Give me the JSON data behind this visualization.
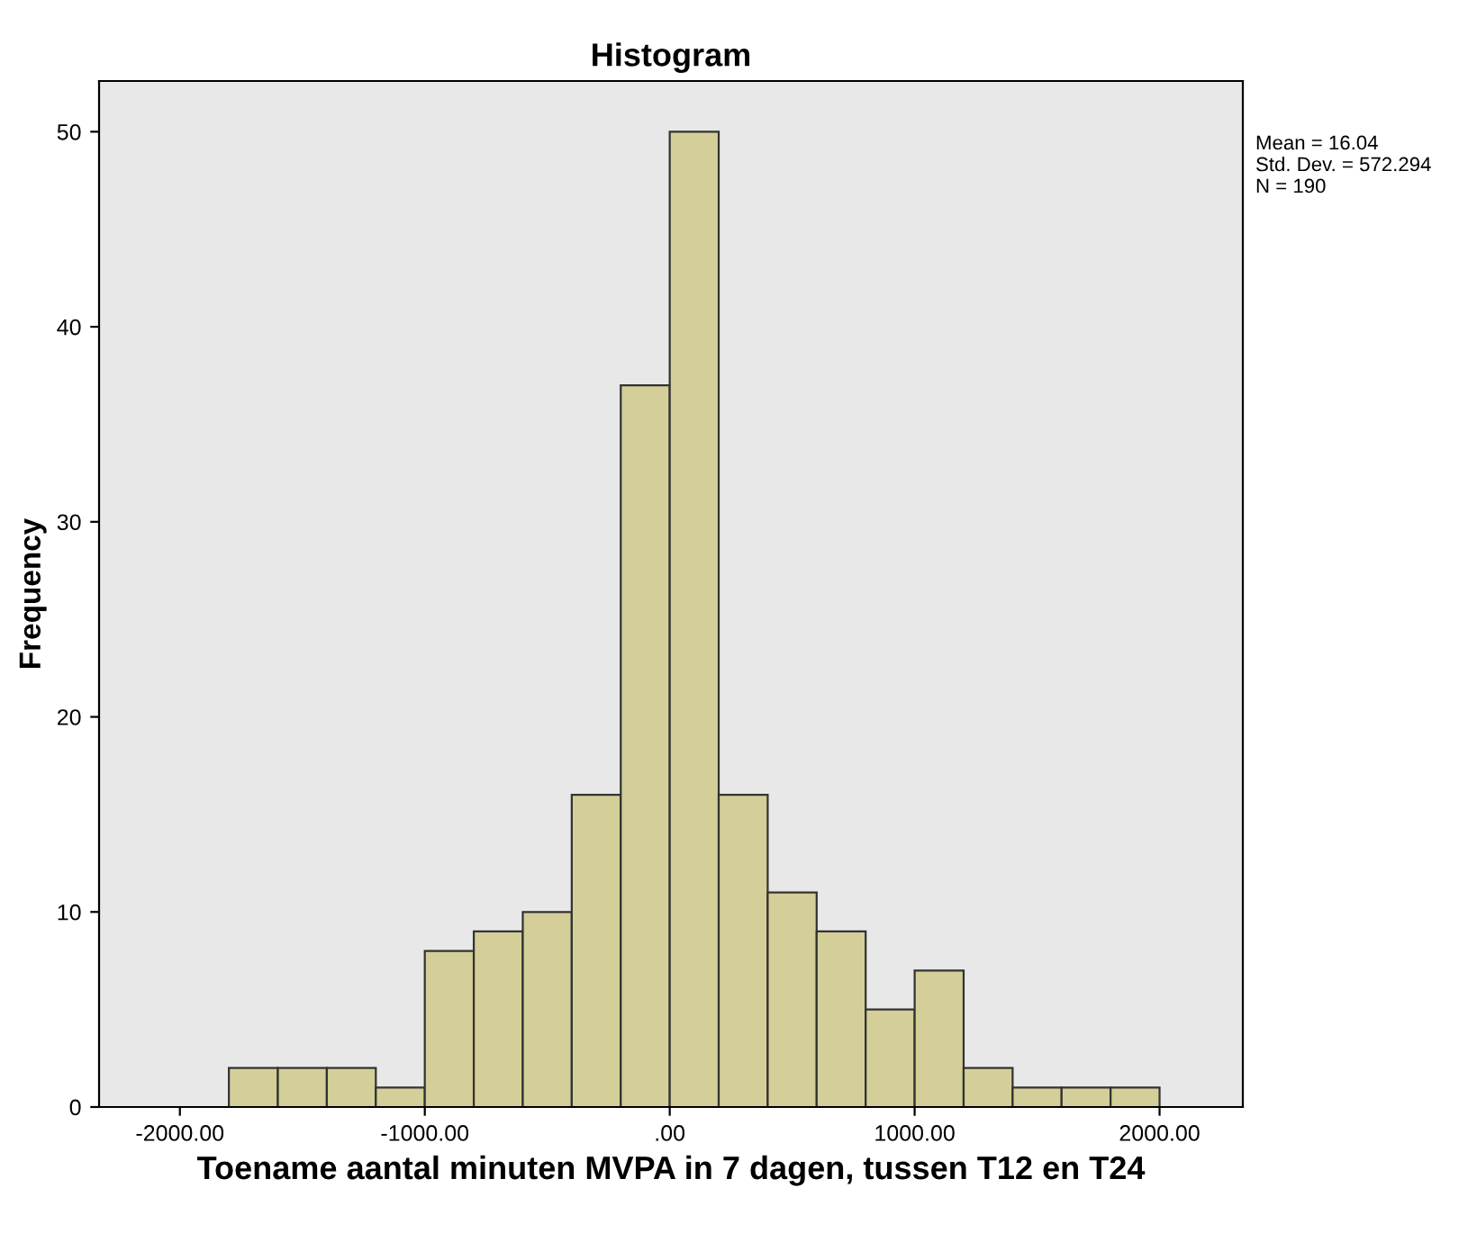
{
  "chart_data": {
    "type": "histogram",
    "title": "Histogram",
    "xlabel": "Toename aantal minuten MVPA in 7 dagen, tussen T12 en T24",
    "ylabel": "Frequency",
    "bins": [
      -1800,
      -1600,
      -1400,
      -1200,
      -1000,
      -800,
      -600,
      -400,
      -200,
      0,
      200,
      400,
      600,
      800,
      1000,
      1200,
      1400,
      1600,
      1800,
      2000
    ],
    "values": [
      2,
      2,
      2,
      1,
      8,
      9,
      10,
      16,
      37,
      50,
      16,
      11,
      9,
      5,
      7,
      2,
      1,
      1,
      1
    ],
    "color": "#d4cf98",
    "xlim": [
      -2330,
      2340
    ],
    "ylim": [
      0,
      52.6
    ],
    "xticks": [
      {
        "value": -2000,
        "label": "-2000.00"
      },
      {
        "value": -1000,
        "label": "-1000.00"
      },
      {
        "value": 0,
        "label": ".00"
      },
      {
        "value": 1000,
        "label": "1000.00"
      },
      {
        "value": 2000,
        "label": "2000.00"
      }
    ],
    "yticks": [
      0,
      10,
      20,
      30,
      40,
      50
    ],
    "grid": false,
    "legend": false,
    "annotations": [
      "Mean = 16.04",
      "Std. Dev. = 572.294",
      "N = 190"
    ]
  }
}
